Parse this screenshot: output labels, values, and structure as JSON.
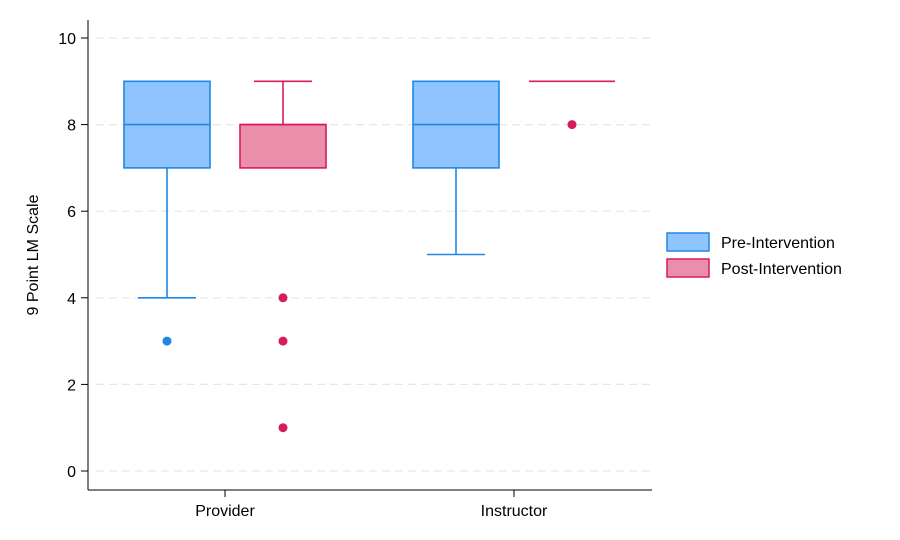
{
  "chart_data": {
    "type": "box",
    "title": "",
    "xlabel": "",
    "ylabel": "9 Point LM Scale",
    "ylim": [
      0,
      10
    ],
    "yticks": [
      0,
      2,
      4,
      6,
      8,
      10
    ],
    "grid": "horizontal-dashed",
    "legend_position": "right",
    "categories": [
      "Provider",
      "Instructor"
    ],
    "series": [
      {
        "name": "Pre-Intervention",
        "fill": "#90c4ff",
        "stroke": "#1e88e5",
        "boxes": [
          {
            "category": "Provider",
            "min": 4,
            "q1": 7,
            "median": 8,
            "q3": 9,
            "max": 9,
            "outliers": [
              3
            ]
          },
          {
            "category": "Instructor",
            "min": 5,
            "q1": 7,
            "median": 8,
            "q3": 9,
            "max": 9,
            "outliers": []
          }
        ]
      },
      {
        "name": "Post-Intervention",
        "fill": "#e98fab",
        "stroke": "#d81b60",
        "boxes": [
          {
            "category": "Provider",
            "min": 7,
            "q1": 7,
            "median": 8,
            "q3": 8,
            "max": 9,
            "outliers": [
              4,
              3,
              1
            ]
          },
          {
            "category": "Instructor",
            "min": 9,
            "q1": 9,
            "median": 9,
            "q3": 9,
            "max": 9,
            "outliers": [
              8
            ]
          }
        ]
      }
    ]
  }
}
